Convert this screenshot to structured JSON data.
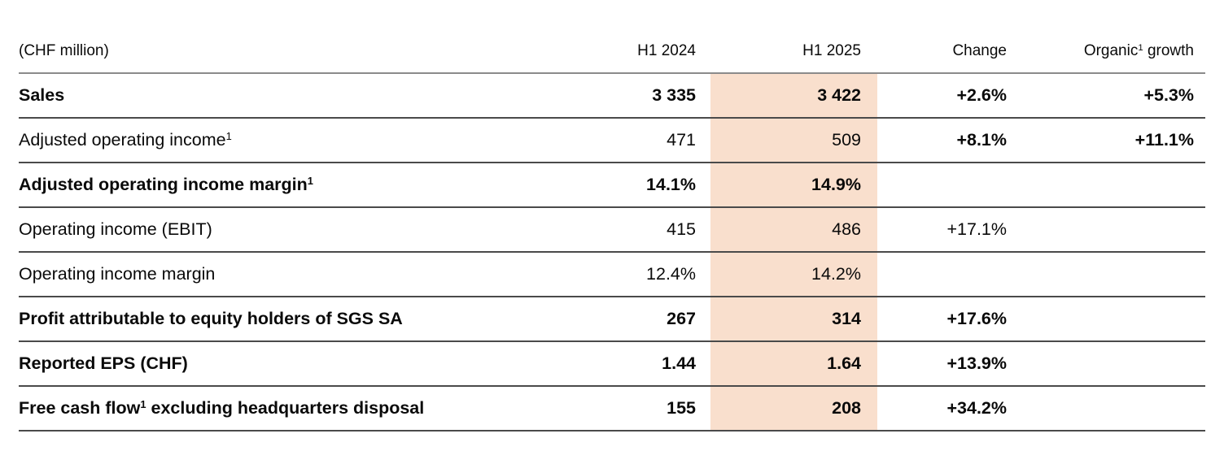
{
  "table": {
    "unit_label": "(CHF million)",
    "highlight_color": "#f9dfcd",
    "headers": {
      "h1_2024": "H1 2024",
      "h1_2025": "H1 2025",
      "change": "Change",
      "organic_pre": "Organic",
      "organic_sup": "1",
      "organic_post": " growth"
    },
    "rows": [
      {
        "label_pre": "Sales",
        "h1_2024": "3 335",
        "h1_2025": "3 422",
        "change": "+2.6%",
        "organic": "+5.3%"
      },
      {
        "label_pre": "Adjusted operating income",
        "label_sup": "1",
        "h1_2024": "471",
        "h1_2025": "509",
        "change": "+8.1%",
        "organic": "+11.1%"
      },
      {
        "label_pre": "Adjusted operating income margin",
        "label_sup": "1",
        "h1_2024": "14.1%",
        "h1_2025": "14.9%",
        "change": "",
        "organic": ""
      },
      {
        "label_pre": "Operating income (EBIT)",
        "h1_2024": "415",
        "h1_2025": "486",
        "change": "+17.1%",
        "organic": ""
      },
      {
        "label_pre": "Operating income margin",
        "h1_2024": "12.4%",
        "h1_2025": "14.2%",
        "change": "",
        "organic": ""
      },
      {
        "label_pre": "Profit attributable to equity holders of SGS SA",
        "h1_2024": "267",
        "h1_2025": "314",
        "change": "+17.6%",
        "organic": ""
      },
      {
        "label_pre": "Reported EPS (CHF)",
        "h1_2024": "1.44",
        "h1_2025": "1.64",
        "change": "+13.9%",
        "organic": ""
      },
      {
        "label_pre": "Free cash flow",
        "label_sup": "1",
        "label_post": " excluding headquarters disposal",
        "h1_2024": "155",
        "h1_2025": "208",
        "change": "+34.2%",
        "organic": ""
      }
    ]
  }
}
